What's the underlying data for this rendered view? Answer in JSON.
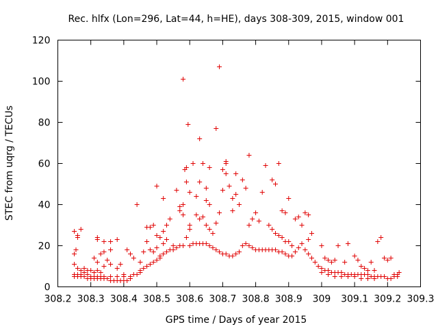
{
  "chart_data": {
    "type": "scatter",
    "title": "Rec. hlfx (Lon=296, Lat=44, h=HE), days 308-309, 2015, window 001",
    "xlabel": "GPS time / Days of year 2015",
    "ylabel": "STEC from uqrg / TECUs",
    "xlim": [
      308.2,
      309.3
    ],
    "ylim": [
      0,
      120
    ],
    "xticks": [
      308.2,
      308.3,
      308.4,
      308.5,
      308.6,
      308.7,
      308.8,
      308.9,
      309,
      309.1,
      309.2,
      309.3
    ],
    "xtick_labels": [
      "308.2",
      "308.3",
      "308.4",
      "308.5",
      "308.6",
      "308.7",
      "308.8",
      "308.9",
      "309",
      "309.1",
      "309.2",
      "309.3"
    ],
    "yticks": [
      0,
      20,
      40,
      60,
      80,
      100,
      120
    ],
    "ytick_labels": [
      "0",
      "20",
      "40",
      "60",
      "80",
      "100",
      "120"
    ],
    "grid": false,
    "marker": "+",
    "color": "#e00000",
    "series": [
      {
        "name": "STEC",
        "points": [
          [
            308.25,
            27
          ],
          [
            308.255,
            18
          ],
          [
            308.25,
            16
          ],
          [
            308.25,
            11
          ],
          [
            308.26,
            25
          ],
          [
            308.26,
            24
          ],
          [
            308.27,
            28
          ],
          [
            308.25,
            6
          ],
          [
            308.26,
            6
          ],
          [
            308.27,
            6
          ],
          [
            308.28,
            7
          ],
          [
            308.29,
            6
          ],
          [
            308.3,
            5
          ],
          [
            308.31,
            5
          ],
          [
            308.32,
            5
          ],
          [
            308.33,
            5
          ],
          [
            308.25,
            5
          ],
          [
            308.26,
            5
          ],
          [
            308.27,
            5
          ],
          [
            308.28,
            5
          ],
          [
            308.29,
            4
          ],
          [
            308.3,
            4
          ],
          [
            308.31,
            4
          ],
          [
            308.32,
            4
          ],
          [
            308.33,
            4
          ],
          [
            308.26,
            9
          ],
          [
            308.27,
            8
          ],
          [
            308.28,
            9
          ],
          [
            308.29,
            8
          ],
          [
            308.3,
            8
          ],
          [
            308.31,
            7
          ],
          [
            308.32,
            8
          ],
          [
            308.33,
            7
          ],
          [
            308.32,
            24
          ],
          [
            308.32,
            23
          ],
          [
            308.34,
            22
          ],
          [
            308.36,
            22
          ],
          [
            308.38,
            23
          ],
          [
            308.36,
            18
          ],
          [
            308.34,
            17
          ],
          [
            308.33,
            16
          ],
          [
            308.32,
            12
          ],
          [
            308.31,
            14
          ],
          [
            308.35,
            13
          ],
          [
            308.34,
            10
          ],
          [
            308.36,
            11
          ],
          [
            308.38,
            9
          ],
          [
            308.39,
            11
          ],
          [
            308.4,
            6
          ],
          [
            308.34,
            4
          ],
          [
            308.35,
            4
          ],
          [
            308.36,
            3
          ],
          [
            308.37,
            3
          ],
          [
            308.38,
            3
          ],
          [
            308.39,
            3
          ],
          [
            308.4,
            3
          ],
          [
            308.41,
            3
          ],
          [
            308.42,
            4
          ],
          [
            308.34,
            5
          ],
          [
            308.36,
            5
          ],
          [
            308.38,
            5
          ],
          [
            308.4,
            5
          ],
          [
            308.42,
            5
          ],
          [
            308.43,
            6
          ],
          [
            308.44,
            6
          ],
          [
            308.45,
            7
          ],
          [
            308.42,
            16
          ],
          [
            308.43,
            14
          ],
          [
            308.41,
            18
          ],
          [
            308.44,
            40
          ],
          [
            308.45,
            12
          ],
          [
            308.46,
            17
          ],
          [
            308.45,
            8
          ],
          [
            308.46,
            9
          ],
          [
            308.47,
            10
          ],
          [
            308.48,
            11
          ],
          [
            308.49,
            12
          ],
          [
            308.5,
            13
          ],
          [
            308.51,
            14
          ],
          [
            308.47,
            22
          ],
          [
            308.47,
            29
          ],
          [
            308.48,
            29
          ],
          [
            308.49,
            30
          ],
          [
            308.48,
            18
          ],
          [
            308.49,
            17
          ],
          [
            308.5,
            19
          ],
          [
            308.5,
            25
          ],
          [
            308.5,
            49
          ],
          [
            308.51,
            24
          ],
          [
            308.52,
            43
          ],
          [
            308.52,
            27
          ],
          [
            308.52,
            21
          ],
          [
            308.53,
            23
          ],
          [
            308.53,
            30
          ],
          [
            308.54,
            33
          ],
          [
            308.55,
            20
          ],
          [
            308.51,
            15
          ],
          [
            308.52,
            16
          ],
          [
            308.53,
            17
          ],
          [
            308.54,
            18
          ],
          [
            308.55,
            18
          ],
          [
            308.56,
            19
          ],
          [
            308.57,
            20
          ],
          [
            308.58,
            20
          ],
          [
            308.56,
            47
          ],
          [
            308.57,
            39
          ],
          [
            308.57,
            37
          ],
          [
            308.58,
            40
          ],
          [
            308.58,
            35
          ],
          [
            308.58,
            101
          ],
          [
            308.585,
            57
          ],
          [
            308.59,
            58
          ],
          [
            308.595,
            79
          ],
          [
            308.59,
            51
          ],
          [
            308.6,
            46
          ],
          [
            308.6,
            28
          ],
          [
            308.59,
            24
          ],
          [
            308.6,
            30
          ],
          [
            308.6,
            20
          ],
          [
            308.61,
            21
          ],
          [
            308.62,
            21
          ],
          [
            308.63,
            21
          ],
          [
            308.64,
            21
          ],
          [
            308.65,
            21
          ],
          [
            308.66,
            20
          ],
          [
            308.67,
            19
          ],
          [
            308.61,
            60
          ],
          [
            308.62,
            44
          ],
          [
            308.63,
            72
          ],
          [
            308.63,
            51
          ],
          [
            308.64,
            60
          ],
          [
            308.65,
            48
          ],
          [
            308.65,
            42
          ],
          [
            308.66,
            40
          ],
          [
            308.62,
            35
          ],
          [
            308.63,
            33
          ],
          [
            308.64,
            34
          ],
          [
            308.65,
            30
          ],
          [
            308.66,
            28
          ],
          [
            308.67,
            26
          ],
          [
            308.68,
            31
          ],
          [
            308.69,
            36
          ],
          [
            308.66,
            58
          ],
          [
            308.68,
            77
          ],
          [
            308.69,
            107
          ],
          [
            308.7,
            57
          ],
          [
            308.71,
            61
          ],
          [
            308.71,
            60
          ],
          [
            308.71,
            55
          ],
          [
            308.7,
            47
          ],
          [
            308.72,
            49
          ],
          [
            308.73,
            43
          ],
          [
            308.73,
            37
          ],
          [
            308.74,
            45
          ],
          [
            308.75,
            40
          ],
          [
            308.74,
            55
          ],
          [
            308.68,
            18
          ],
          [
            308.69,
            17
          ],
          [
            308.7,
            16
          ],
          [
            308.71,
            16
          ],
          [
            308.72,
            15
          ],
          [
            308.73,
            15
          ],
          [
            308.74,
            16
          ],
          [
            308.75,
            17
          ],
          [
            308.76,
            52
          ],
          [
            308.77,
            48
          ],
          [
            308.78,
            64
          ],
          [
            308.78,
            30
          ],
          [
            308.79,
            33
          ],
          [
            308.8,
            36
          ],
          [
            308.81,
            32
          ],
          [
            308.82,
            46
          ],
          [
            308.76,
            20
          ],
          [
            308.77,
            21
          ],
          [
            308.78,
            20
          ],
          [
            308.79,
            19
          ],
          [
            308.8,
            18
          ],
          [
            308.81,
            18
          ],
          [
            308.82,
            18
          ],
          [
            308.83,
            18
          ],
          [
            308.83,
            59
          ],
          [
            308.85,
            52
          ],
          [
            308.86,
            50
          ],
          [
            308.87,
            60
          ],
          [
            308.88,
            37
          ],
          [
            308.89,
            36
          ],
          [
            308.9,
            43
          ],
          [
            308.84,
            18
          ],
          [
            308.85,
            18
          ],
          [
            308.86,
            18
          ],
          [
            308.87,
            17
          ],
          [
            308.88,
            17
          ],
          [
            308.89,
            16
          ],
          [
            308.9,
            15
          ],
          [
            308.91,
            15
          ],
          [
            308.84,
            30
          ],
          [
            308.85,
            28
          ],
          [
            308.86,
            26
          ],
          [
            308.87,
            25
          ],
          [
            308.88,
            24
          ],
          [
            308.89,
            22
          ],
          [
            308.9,
            22
          ],
          [
            308.91,
            20
          ],
          [
            308.92,
            33
          ],
          [
            308.93,
            34
          ],
          [
            308.94,
            30
          ],
          [
            308.95,
            36
          ],
          [
            308.96,
            35
          ],
          [
            308.97,
            26
          ],
          [
            308.96,
            23
          ],
          [
            308.92,
            17
          ],
          [
            308.93,
            19
          ],
          [
            308.94,
            21
          ],
          [
            308.95,
            18
          ],
          [
            308.96,
            16
          ],
          [
            308.97,
            14
          ],
          [
            308.98,
            12
          ],
          [
            308.99,
            10
          ],
          [
            309,
            20
          ],
          [
            309.01,
            14
          ],
          [
            309.02,
            13
          ],
          [
            309.03,
            12
          ],
          [
            309.04,
            13
          ],
          [
            309.05,
            20
          ],
          [
            309.07,
            12
          ],
          [
            309.08,
            21
          ],
          [
            309,
            9
          ],
          [
            309.01,
            8
          ],
          [
            309.02,
            8
          ],
          [
            309.03,
            7
          ],
          [
            309.04,
            7
          ],
          [
            309.05,
            7
          ],
          [
            309.06,
            7
          ],
          [
            309.07,
            6
          ],
          [
            309.08,
            6
          ],
          [
            309.09,
            6
          ],
          [
            309.1,
            6
          ],
          [
            309.11,
            6
          ],
          [
            309.12,
            6
          ],
          [
            309.13,
            6
          ],
          [
            309.14,
            6
          ],
          [
            309.15,
            5
          ],
          [
            309.16,
            5
          ],
          [
            309,
            7
          ],
          [
            309.02,
            6
          ],
          [
            309.04,
            5
          ],
          [
            309.06,
            5
          ],
          [
            309.08,
            5
          ],
          [
            309.1,
            5
          ],
          [
            309.12,
            4
          ],
          [
            309.14,
            4
          ],
          [
            309.16,
            4
          ],
          [
            309.1,
            15
          ],
          [
            309.11,
            13
          ],
          [
            309.12,
            10
          ],
          [
            309.13,
            9
          ],
          [
            309.14,
            8
          ],
          [
            309.15,
            12
          ],
          [
            309.16,
            8
          ],
          [
            309.17,
            22
          ],
          [
            309.18,
            24
          ],
          [
            309.19,
            14
          ],
          [
            309.2,
            13
          ],
          [
            309.21,
            14
          ],
          [
            309.22,
            6
          ],
          [
            309.23,
            6
          ],
          [
            309.17,
            5
          ],
          [
            309.18,
            5
          ],
          [
            309.19,
            5
          ],
          [
            309.2,
            4
          ],
          [
            309.21,
            4
          ],
          [
            309.22,
            5
          ],
          [
            309.23,
            5
          ],
          [
            309.235,
            7
          ]
        ]
      }
    ]
  }
}
